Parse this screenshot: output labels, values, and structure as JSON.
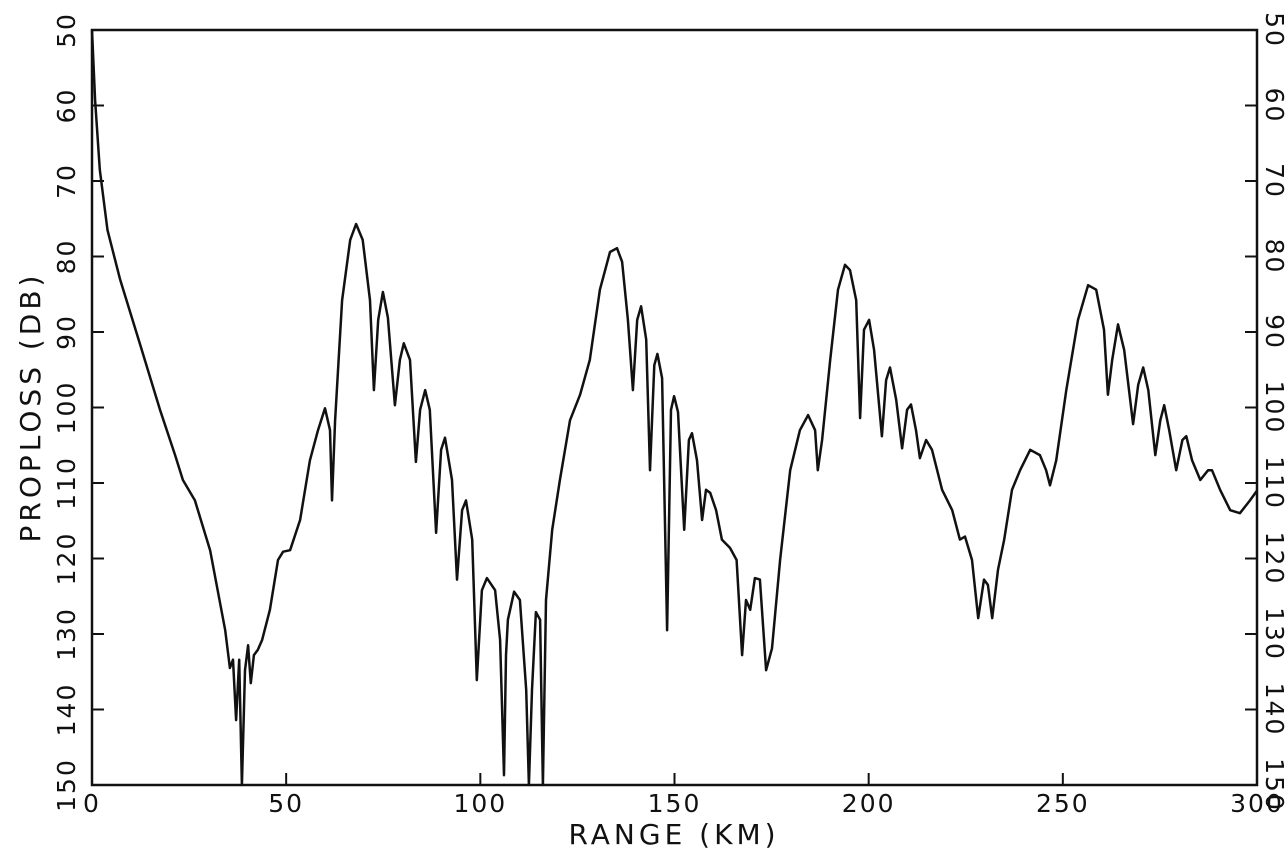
{
  "chart_data": {
    "type": "line",
    "xlabel": "RANGE (KM)",
    "ylabel": "PROPLOSS (DB)",
    "xlim": [
      0,
      300
    ],
    "xticks": [
      0,
      50,
      100,
      150,
      200,
      250,
      300
    ],
    "ylim": [
      150,
      50
    ],
    "yticks": [
      50,
      60,
      70,
      80,
      90,
      100,
      110,
      120,
      130,
      140,
      150
    ],
    "y2lim": [
      150,
      50
    ],
    "y2ticks": [
      50,
      60,
      70,
      80,
      90,
      100,
      110,
      120,
      130,
      140,
      150
    ],
    "grid": false,
    "color": "#111111",
    "x": [
      0,
      0.8,
      2,
      4,
      7.2,
      12.4,
      17.5,
      21.4,
      23.4,
      26.5,
      30.4,
      34.3,
      35.5,
      36.3,
      37.1,
      37.9,
      38.6,
      39.4,
      40.2,
      40.9,
      41.7,
      42.7,
      43.8,
      45.8,
      47.9,
      49.2,
      51,
      53.6,
      56.1,
      58.2,
      60,
      61.3,
      61.8,
      62.6,
      64.4,
      66.5,
      68,
      69.7,
      71.6,
      72.6,
      73.7,
      74.9,
      76.2,
      78,
      79.3,
      80.3,
      81.9,
      83.4,
      84.5,
      85.8,
      87,
      88.6,
      89.9,
      90.9,
      92.7,
      94,
      95.3,
      96.3,
      97.9,
      99.1,
      100.4,
      101.7,
      103.8,
      105.1,
      106.1,
      106.6,
      107.1,
      108.7,
      110.2,
      111.8,
      112.5,
      113.3,
      114.3,
      115.4,
      116.1,
      116.9,
      118.5,
      120.5,
      123.1,
      125.7,
      128.2,
      130.8,
      133.4,
      135.2,
      136.5,
      138,
      139.3,
      140.4,
      141.4,
      142.7,
      143.7,
      144.8,
      145.6,
      146.8,
      148.1,
      149.1,
      149.9,
      150.9,
      152.5,
      153.7,
      154.5,
      155.8,
      157.1,
      158.1,
      159.2,
      160.7,
      162.2,
      164.3,
      166,
      167.4,
      168.4,
      169.5,
      170.7,
      172,
      173.6,
      175.1,
      177.2,
      179.8,
      182.3,
      184.4,
      186.2,
      186.9,
      188,
      190.1,
      192.1,
      193.9,
      195.2,
      196.8,
      197.8,
      198.8,
      200.1,
      201.4,
      203.4,
      204.5,
      205.5,
      207.1,
      208.6,
      209.9,
      210.9,
      212.2,
      213.2,
      214.8,
      216.3,
      218.9,
      221.5,
      223.5,
      224.8,
      226.6,
      228.2,
      229.7,
      230.7,
      231.8,
      233.3,
      234.9,
      236.9,
      239,
      241.6,
      244.1,
      245.7,
      246.7,
      248.3,
      250.9,
      253.9,
      256.5,
      258.6,
      260.6,
      261.6,
      262.7,
      264.2,
      265.8,
      268.1,
      269.4,
      270.7,
      272,
      273.8,
      275.1,
      276.1,
      277.4,
      279.2,
      280.8,
      281.8,
      283.3,
      285.4,
      287.4,
      288.4,
      290.5,
      293.1,
      295.6,
      298.2,
      300
    ],
    "values": [
      50,
      59.3,
      68.5,
      76.5,
      83,
      91.7,
      100.3,
      106.3,
      109.6,
      112.3,
      118.9,
      129.5,
      134.5,
      133.4,
      141.4,
      133.4,
      150,
      134.8,
      131.5,
      136.5,
      132.8,
      132.1,
      130.8,
      126.8,
      120.2,
      119.1,
      118.9,
      114.9,
      107,
      103,
      100.1,
      103,
      112.3,
      101.7,
      85.8,
      77.8,
      75.7,
      77.8,
      85.8,
      97.7,
      88.4,
      84.7,
      88.1,
      99.7,
      93.7,
      91.5,
      93.7,
      107.2,
      100.3,
      97.7,
      100.3,
      116.6,
      105.6,
      104,
      109.6,
      122.8,
      113.6,
      112.3,
      117.5,
      136.1,
      124.2,
      122.6,
      124.2,
      130.8,
      148.7,
      132.8,
      128.1,
      124.4,
      125.5,
      137.4,
      150,
      137.4,
      127.1,
      128.1,
      150,
      125.5,
      116.2,
      109.6,
      101.7,
      98.3,
      93.7,
      84.4,
      79.4,
      78.9,
      80.7,
      88.4,
      97.7,
      88.4,
      86.6,
      91,
      108.3,
      94.4,
      92.9,
      96.1,
      129.5,
      100.3,
      98.5,
      100.6,
      116.2,
      104.3,
      103.4,
      107,
      114.9,
      110.9,
      111.3,
      113.6,
      117.5,
      118.6,
      120.2,
      132.8,
      125.5,
      126.8,
      122.6,
      122.8,
      134.8,
      131.9,
      120.2,
      108.3,
      103,
      101,
      103,
      108.3,
      104.3,
      93.7,
      84.4,
      81.1,
      81.8,
      85.8,
      101.4,
      89.7,
      88.4,
      92.4,
      103.8,
      96.4,
      94.7,
      99,
      105.4,
      100.3,
      99.6,
      103,
      106.7,
      104.3,
      105.6,
      110.9,
      113.6,
      117.5,
      117.1,
      120.2,
      127.9,
      122.8,
      123.5,
      127.9,
      121.5,
      117.5,
      110.9,
      108.3,
      105.6,
      106.3,
      108.3,
      110.3,
      107,
      97.7,
      88.4,
      83.8,
      84.4,
      89.7,
      98.3,
      93.7,
      89,
      92.4,
      102.2,
      97,
      94.7,
      97.7,
      106.3,
      101.7,
      99.7,
      103,
      108.3,
      104.3,
      103.8,
      107,
      109.6,
      108.3,
      108.3,
      110.9,
      113.6,
      114,
      112.3,
      111
    ]
  }
}
